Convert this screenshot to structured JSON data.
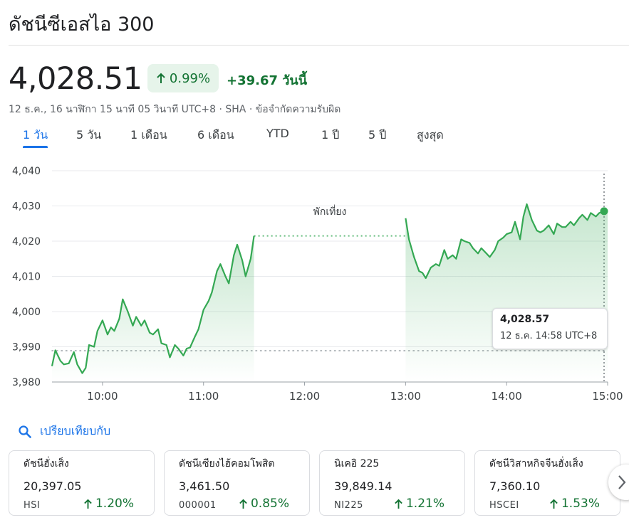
{
  "header": {
    "title": "ดัชนีซีเอสไอ 300",
    "price": "4,028.51",
    "pct_change": "0.99%",
    "abs_change": "+39.67",
    "period_label": "วันนี้",
    "meta": "12 ธ.ค., 16 นาฬิกา 15 นาที 05 วินาที UTC+8 · SHA · ข้อจำกัดความรับผิด"
  },
  "tabs": [
    {
      "label": "1 วัน",
      "active": true
    },
    {
      "label": "5 วัน",
      "active": false
    },
    {
      "label": "1 เดือน",
      "active": false
    },
    {
      "label": "6 เดือน",
      "active": false
    },
    {
      "label": "YTD",
      "active": false
    },
    {
      "label": "1 ปี",
      "active": false
    },
    {
      "label": "5 ปี",
      "active": false
    },
    {
      "label": "สูงสุด",
      "active": false
    }
  ],
  "chart_data": {
    "type": "line",
    "xlabel": "",
    "ylabel": "",
    "xlim": [
      "09:30",
      "15:00"
    ],
    "ylim": [
      3980,
      4040
    ],
    "x_ticks": [
      "10:00",
      "11:00",
      "12:00",
      "13:00",
      "14:00",
      "15:00"
    ],
    "y_ticks": [
      "4,040",
      "4,030",
      "4,020",
      "4,010",
      "4,000",
      "3,990",
      "3,980"
    ],
    "grid": true,
    "previous_close": 3988.9,
    "annotation": "พักเที่ยง",
    "series": [
      {
        "segment": "morning",
        "x": [
          "09:30",
          "09:32",
          "09:35",
          "09:37",
          "09:40",
          "09:43",
          "09:45",
          "09:48",
          "09:50",
          "09:52",
          "09:55",
          "09:57",
          "10:00",
          "10:03",
          "10:05",
          "10:07",
          "10:10",
          "10:12",
          "10:15",
          "10:18",
          "10:20",
          "10:23",
          "10:25",
          "10:28",
          "10:30",
          "10:33",
          "10:35",
          "10:38",
          "10:40",
          "10:43",
          "10:45",
          "10:48",
          "10:50",
          "10:52",
          "10:55",
          "10:57",
          "11:00",
          "11:03",
          "11:05",
          "11:08",
          "11:10",
          "11:13",
          "11:15",
          "11:18",
          "11:20",
          "11:23",
          "11:25",
          "11:28",
          "11:30"
        ],
        "values": [
          3984.5,
          3989.0,
          3986.0,
          3985.0,
          3985.3,
          3988.5,
          3985.0,
          3982.5,
          3984.0,
          3990.5,
          3990.0,
          3994.5,
          3997.5,
          3993.5,
          3995.5,
          3994.5,
          3998.0,
          4003.5,
          4000.0,
          3996.0,
          3998.5,
          3996.0,
          3997.5,
          3994.0,
          3993.5,
          3995.0,
          3991.0,
          3990.5,
          3987.0,
          3990.5,
          3989.5,
          3987.5,
          3989.5,
          3989.8,
          3993.0,
          3995.0,
          4000.5,
          4003.0,
          4005.5,
          4011.5,
          4013.5,
          4010.0,
          4008.0,
          4016.0,
          4019.0,
          4014.5,
          4010.0,
          4015.0,
          4021.5
        ]
      },
      {
        "segment": "afternoon",
        "x": [
          "13:00",
          "13:02",
          "13:05",
          "13:08",
          "13:10",
          "13:12",
          "13:15",
          "13:18",
          "13:20",
          "13:23",
          "13:25",
          "13:28",
          "13:30",
          "13:33",
          "13:35",
          "13:38",
          "13:40",
          "13:43",
          "13:45",
          "13:48",
          "13:50",
          "13:53",
          "13:55",
          "13:58",
          "14:00",
          "14:03",
          "14:05",
          "14:08",
          "14:10",
          "14:12",
          "14:15",
          "14:18",
          "14:20",
          "14:22",
          "14:25",
          "14:28",
          "14:30",
          "14:33",
          "14:35",
          "14:38",
          "14:40",
          "14:43",
          "14:45",
          "14:48",
          "14:50",
          "14:53",
          "14:55",
          "14:58",
          "15:00"
        ],
        "values": [
          4026.5,
          4020.5,
          4015.5,
          4011.5,
          4011.0,
          4009.5,
          4012.5,
          4013.5,
          4013.0,
          4017.5,
          4015.0,
          4016.0,
          4015.0,
          4020.5,
          4020.0,
          4019.5,
          4018.0,
          4016.5,
          4018.0,
          4016.5,
          4015.5,
          4017.5,
          4020.0,
          4021.0,
          4022.0,
          4022.5,
          4025.5,
          4020.5,
          4027.0,
          4030.5,
          4026.0,
          4023.0,
          4022.5,
          4023.0,
          4024.5,
          4022.0,
          4025.0,
          4024.0,
          4024.0,
          4025.5,
          4024.5,
          4026.5,
          4027.5,
          4026.0,
          4028.0,
          4027.0,
          4028.0,
          4028.57,
          4028.51
        ]
      }
    ]
  },
  "tooltip": {
    "value": "4,028.57",
    "time": "12 ธ.ค. 14:58 UTC+8"
  },
  "compare": {
    "label": "เปรียบเทียบกับ",
    "icon": "search-icon"
  },
  "cards": [
    {
      "name": "ดัชนีฮั่งเส็ง",
      "value": "20,397.05",
      "symbol": "HSI",
      "change": "1.20%"
    },
    {
      "name": "ดัชนีเซียงไฮ้คอมโพสิต",
      "value": "3,461.50",
      "symbol": "000001",
      "change": "0.85%"
    },
    {
      "name": "นิเคอิ 225",
      "value": "39,849.14",
      "symbol": "NI225",
      "change": "1.21%"
    },
    {
      "name": "ดัชนีวิสาหกิจจีนฮั่งเส็ง",
      "value": "7,360.10",
      "symbol": "HSCEI",
      "change": "1.53%"
    }
  ],
  "colors": {
    "positive": "#137333",
    "line": "#34a853",
    "accent": "#1a73e8",
    "badge_bg": "#e6f4ea"
  }
}
